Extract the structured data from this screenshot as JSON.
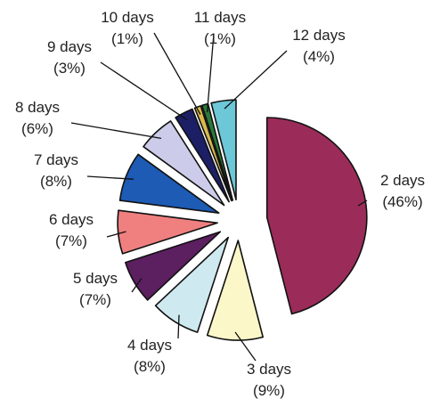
{
  "chart_data": {
    "type": "pie",
    "title": "",
    "categories": [
      "2 days",
      "3 days",
      "4 days",
      "5 days",
      "6 days",
      "7 days",
      "8 days",
      "9 days",
      "10 days",
      "11 days",
      "12 days"
    ],
    "values": [
      46,
      9,
      8,
      7,
      7,
      8,
      6,
      3,
      1,
      1,
      4
    ],
    "value_labels": [
      "(46%)",
      "(9%)",
      "(8%)",
      "(7%)",
      "(7%)",
      "(8%)",
      "(6%)",
      "(3%)",
      "(1%)",
      "(1%)",
      "(4%)"
    ],
    "colors": [
      "#9b2c5a",
      "#fbf7c8",
      "#cfe9f0",
      "#5c1f60",
      "#f08080",
      "#1d5bb5",
      "#ccccea",
      "#1c1f66",
      "#d9b94d",
      "#2a7a3a",
      "#6cc8d6"
    ],
    "slice_style": "exploded",
    "start": "12 o'clock, clockwise",
    "legend": "none, labels beside slices with leader lines"
  }
}
